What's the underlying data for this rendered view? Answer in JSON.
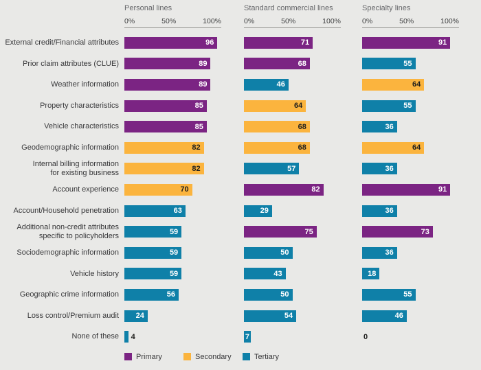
{
  "page": {
    "background": "#e9e9e7"
  },
  "colors": {
    "page_bg": "#e9e9e7",
    "primary": "#7b2483",
    "secondary": "#fbb43e",
    "tertiary": "#0f80a8",
    "axis_line": "#94948f",
    "panel_title_text": "#66676a",
    "tick_text": "#3f4041",
    "category_text": "#38383a",
    "value_inside_light": "#ffffff",
    "value_inside_dark": "#1f1f1d"
  },
  "legend": {
    "items": [
      {
        "label": "Primary",
        "tier": "primary"
      },
      {
        "label": "Secondary",
        "tier": "secondary"
      },
      {
        "label": "Tertiary",
        "tier": "tertiary"
      }
    ]
  },
  "chart_data": {
    "type": "bar",
    "orientation": "horizontal",
    "value_unit": "%",
    "xlim": [
      0,
      100
    ],
    "grid": false,
    "legend_position": "bottom",
    "panels": [
      {
        "title": "Personal lines",
        "ticks": [
          "0%",
          "50%",
          "100%"
        ]
      },
      {
        "title": "Standard commercial lines",
        "ticks": [
          "0%",
          "50%",
          "100%"
        ]
      },
      {
        "title": "Specialty lines",
        "ticks": [
          "0%",
          "50%",
          "100%"
        ]
      }
    ],
    "categories": [
      {
        "lines": [
          "External credit/Financial attributes"
        ]
      },
      {
        "lines": [
          "Prior claim attributes (CLUE)"
        ]
      },
      {
        "lines": [
          "Weather information"
        ]
      },
      {
        "lines": [
          "Property characteristics"
        ]
      },
      {
        "lines": [
          "Vehicle characteristics"
        ]
      },
      {
        "lines": [
          "Geodemographic information"
        ]
      },
      {
        "lines": [
          "Internal billing information",
          "for existing business"
        ]
      },
      {
        "lines": [
          "Account experience"
        ]
      },
      {
        "lines": [
          "Account/Household penetration"
        ]
      },
      {
        "lines": [
          "Additional non-credit attributes",
          "specific to policyholders"
        ]
      },
      {
        "lines": [
          "Sociodemographic information"
        ]
      },
      {
        "lines": [
          "Vehicle history"
        ]
      },
      {
        "lines": [
          "Geographic crime information"
        ]
      },
      {
        "lines": [
          "Loss control/Premium audit"
        ]
      },
      {
        "lines": [
          "None of these"
        ]
      }
    ],
    "series": [
      {
        "name": "Personal lines",
        "values": [
          96,
          89,
          89,
          85,
          85,
          82,
          82,
          70,
          63,
          59,
          59,
          59,
          56,
          24,
          4
        ],
        "tiers": [
          "primary",
          "primary",
          "primary",
          "primary",
          "primary",
          "secondary",
          "secondary",
          "secondary",
          "tertiary",
          "tertiary",
          "tertiary",
          "tertiary",
          "tertiary",
          "tertiary",
          "tertiary"
        ]
      },
      {
        "name": "Standard commercial lines",
        "values": [
          71,
          68,
          46,
          64,
          68,
          68,
          57,
          82,
          29,
          75,
          50,
          43,
          50,
          54,
          7
        ],
        "tiers": [
          "primary",
          "primary",
          "tertiary",
          "secondary",
          "secondary",
          "secondary",
          "tertiary",
          "primary",
          "tertiary",
          "primary",
          "tertiary",
          "tertiary",
          "tertiary",
          "tertiary",
          "tertiary"
        ]
      },
      {
        "name": "Specialty lines",
        "values": [
          91,
          55,
          64,
          55,
          36,
          64,
          36,
          91,
          36,
          73,
          36,
          18,
          55,
          46,
          0
        ],
        "tiers": [
          "primary",
          "tertiary",
          "secondary",
          "tertiary",
          "tertiary",
          "secondary",
          "tertiary",
          "primary",
          "tertiary",
          "primary",
          "tertiary",
          "tertiary",
          "tertiary",
          "tertiary",
          "tertiary"
        ]
      }
    ]
  }
}
